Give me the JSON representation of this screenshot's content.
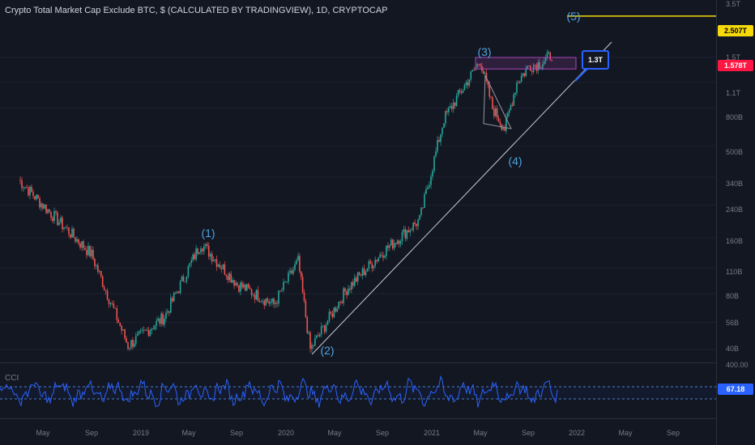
{
  "header": {
    "title": "Crypto Total Market Cap Exclude BTC, $ (CALCULATED BY TRADINGVIEW), 1D, CRYPTOCAP"
  },
  "price_axis": {
    "ticks": [
      "3.5T",
      "1.5T",
      "1.1T",
      "800B",
      "500B",
      "340B",
      "240B",
      "160B",
      "110B",
      "80B",
      "56B",
      "40B"
    ],
    "last_price": "1.578T",
    "target_price": "2.507T",
    "callout": "1.3T"
  },
  "time_axis": {
    "labels": [
      "May",
      "Sep",
      "2019",
      "May",
      "Sep",
      "2020",
      "May",
      "Sep",
      "2021",
      "May",
      "Sep",
      "2022",
      "May",
      "Sep"
    ]
  },
  "waves": {
    "w1": "(1)",
    "w2": "(2)",
    "w3": "(3)",
    "w4": "(4)",
    "w5": "(5)"
  },
  "indicator": {
    "name": "CCI",
    "value": "67.18",
    "partial_tick": "400.00"
  },
  "colors": {
    "background": "#131722",
    "up_candle": "#26a69a",
    "down_candle": "#ef5350",
    "wave_label": "#4fa3e0",
    "target_line": "#f5d90a",
    "last_price_tag": "#ff1744",
    "cci_line": "#2962ff",
    "resistance_box": "#ab47bc"
  },
  "chart_data": {
    "type": "candlestick",
    "title": "Crypto Total Market Cap Exclude BTC, $ (CALCULATED BY TRADINGVIEW), 1D, CRYPTOCAP",
    "y_scale": "log",
    "ylim": [
      36,
      3700
    ],
    "y_unit": "B USD",
    "x": [
      "2018-03",
      "2018-05",
      "2018-09",
      "2018-12",
      "2019-03",
      "2019-06",
      "2019-09",
      "2019-12",
      "2020-02",
      "2020-03",
      "2020-06",
      "2020-09",
      "2020-12",
      "2021-02",
      "2021-05",
      "2021-06",
      "2021-07",
      "2021-08",
      "2021-09",
      "2021-10",
      "2021-11"
    ],
    "close": [
      330,
      240,
      130,
      42,
      60,
      150,
      90,
      70,
      120,
      40,
      85,
      135,
      200,
      700,
      1450,
      800,
      620,
      1100,
      1350,
      1400,
      1580
    ],
    "wave_labels": [
      {
        "label": "(1)",
        "x": "2019-06",
        "y": 150
      },
      {
        "label": "(2)",
        "x": "2020-03",
        "y": 40
      },
      {
        "label": "(3)",
        "x": "2021-05",
        "y": 1450
      },
      {
        "label": "(4)",
        "x": "2021-07",
        "y": 620
      },
      {
        "label": "(5)",
        "x": "2021-12",
        "y": 2507
      }
    ],
    "horizontal_lines": [
      {
        "y": 2507,
        "label": "2.507T"
      }
    ],
    "resistance_zone": {
      "y_range": [
        1300,
        1500
      ]
    },
    "indicator": {
      "name": "CCI",
      "last_value": 67.18
    }
  }
}
